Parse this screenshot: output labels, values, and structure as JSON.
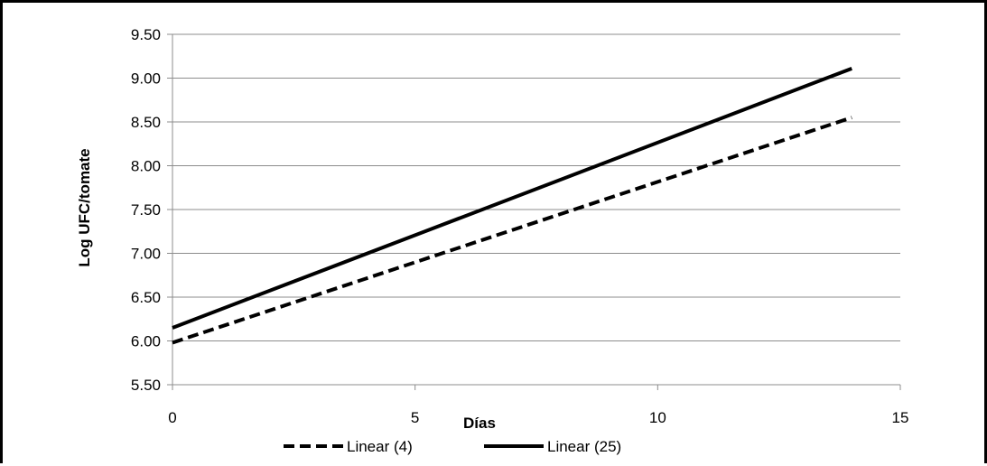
{
  "chart_data": {
    "type": "line",
    "title": "",
    "xlabel": "Días",
    "ylabel": "Log UFC/tomate",
    "xlim": [
      0,
      15
    ],
    "ylim": [
      5.5,
      9.5
    ],
    "x_ticks": [
      "0",
      "5",
      "10",
      "15"
    ],
    "y_ticks": [
      "5.50",
      "6.00",
      "6.50",
      "7.00",
      "7.50",
      "8.00",
      "8.50",
      "9.00",
      "9.50"
    ],
    "grid": "horizontal",
    "legend_position": "bottom",
    "series": [
      {
        "name": "Linear (4)",
        "style": "dashed",
        "color": "#000000",
        "x": [
          0,
          14
        ],
        "y": [
          5.98,
          8.55
        ]
      },
      {
        "name": "Linear (25)",
        "style": "solid",
        "color": "#000000",
        "x": [
          0,
          14
        ],
        "y": [
          6.15,
          9.11
        ]
      }
    ]
  }
}
